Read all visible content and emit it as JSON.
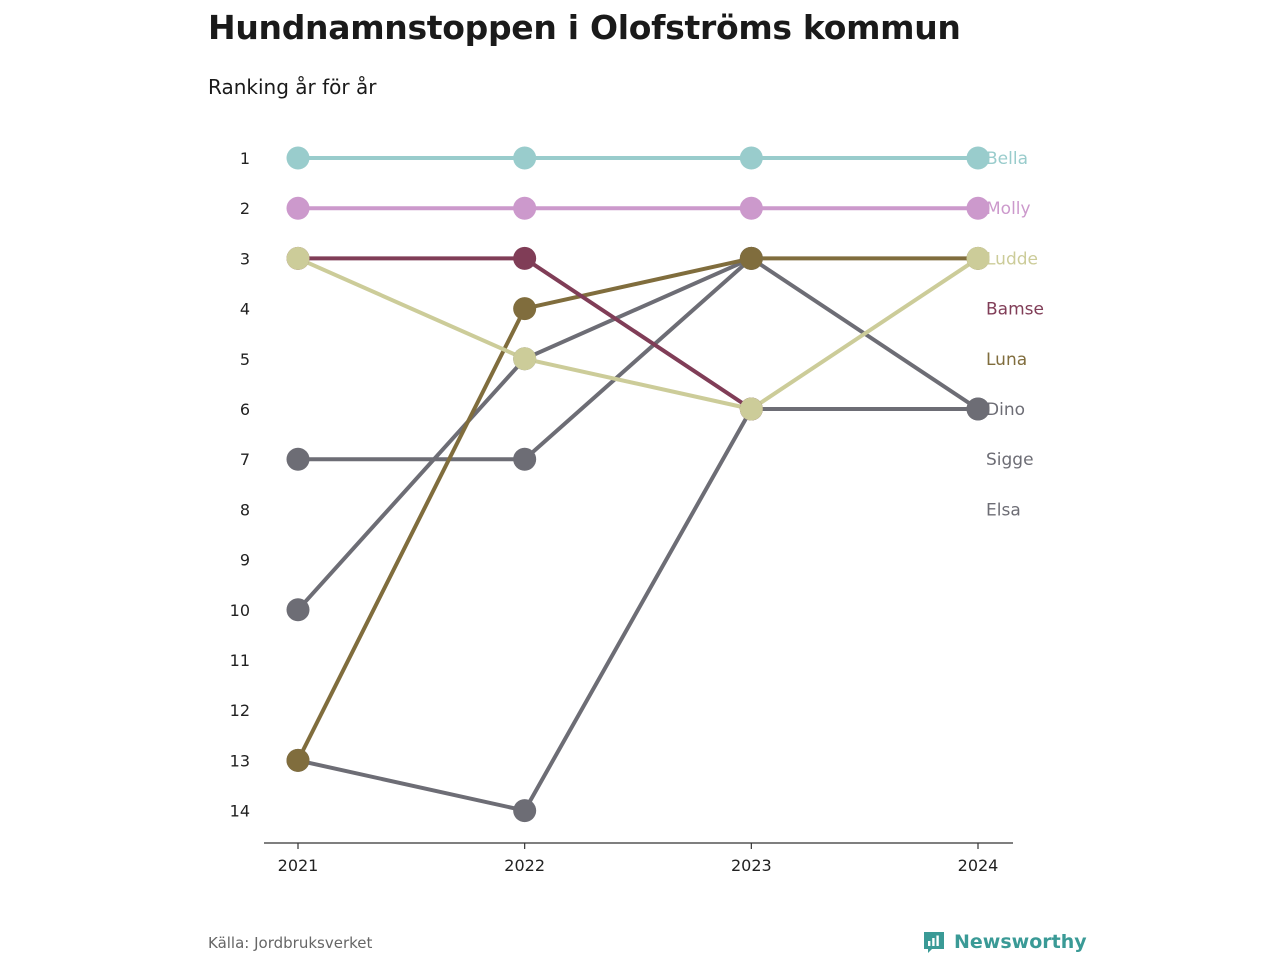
{
  "title": "Hundnamnstoppen i Olofströms kommun",
  "subtitle": "Ranking år för år",
  "source": "Källa: Jordbruksverket",
  "brand": {
    "name": "Newsworthy",
    "icon": "bar-chart-icon",
    "color": "#3a9a96"
  },
  "chart_data": {
    "type": "line",
    "subtype": "bump",
    "x": [
      "2021",
      "2022",
      "2023",
      "2024"
    ],
    "y_ticks": [
      1,
      2,
      3,
      4,
      5,
      6,
      7,
      8,
      9,
      10,
      11,
      12,
      13,
      14
    ],
    "y_range": [
      1,
      14
    ],
    "y_inverted": true,
    "legend": "right, end-of-line labels",
    "series": [
      {
        "name": "Bella",
        "color": "#99cccc",
        "ranks": [
          1,
          1,
          1,
          1
        ]
      },
      {
        "name": "Molly",
        "color": "#cc99cc",
        "ranks": [
          2,
          2,
          2,
          2
        ]
      },
      {
        "name": "Ludde",
        "color": "#cccc99",
        "ranks": [
          3,
          5,
          6,
          3
        ]
      },
      {
        "name": "Bamse",
        "color": "#803d57",
        "ranks": [
          3,
          3,
          6,
          null
        ]
      },
      {
        "name": "Luna",
        "color": "#806d3d",
        "ranks": [
          13,
          4,
          3,
          3
        ]
      },
      {
        "name": "Dino",
        "color": "#6d6d75",
        "ranks": [
          10,
          5,
          3,
          6
        ]
      },
      {
        "name": "Sigge",
        "color": "#6d6d75",
        "ranks": [
          7,
          7,
          3,
          null
        ]
      },
      {
        "name": "Elsa",
        "color": "#6d6d75",
        "ranks": [
          13,
          14,
          6,
          6
        ]
      }
    ]
  }
}
